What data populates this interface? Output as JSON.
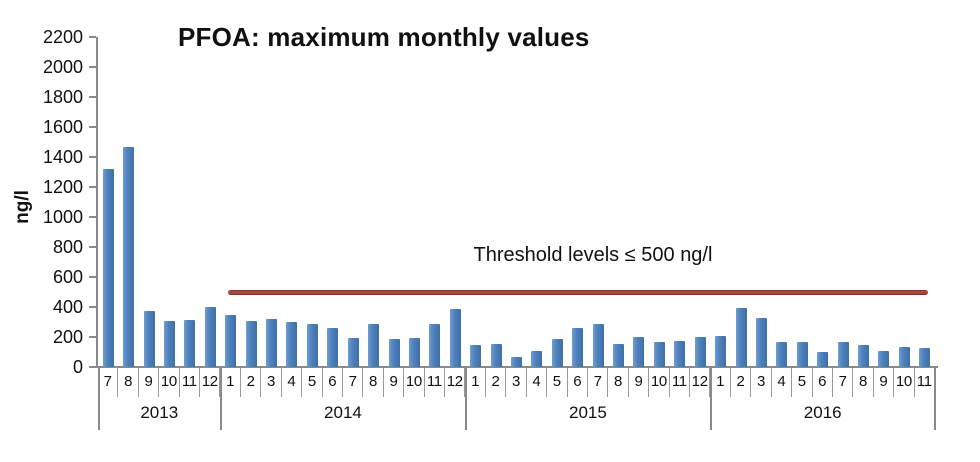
{
  "title": "PFOA: maximum monthly values",
  "colors": {
    "bar": "#4F81BD",
    "bar_highlight": "#6D9DD2",
    "bar_shadow": "#3F6FA6",
    "threshold_line": "#9E3B35",
    "axis": "#8A8A8A",
    "separator": "#9A9A9A",
    "text": "#111111",
    "background": "#FFFFFF"
  },
  "chart_data": {
    "type": "bar",
    "title": "PFOA: maximum monthly values",
    "xlabel": "",
    "ylabel": "ng/l",
    "ylim": [
      0,
      2200
    ],
    "y_tick_step": 200,
    "y_ticks": [
      "2200",
      "2000",
      "1800",
      "1600",
      "1400",
      "1200",
      "1000",
      "800",
      "600",
      "400",
      "200",
      "0"
    ],
    "grid": false,
    "legend_position": "none",
    "threshold_line": {
      "label": "Threshold levels ≤ 500 ng/l",
      "value": 500,
      "span_note": "horizontal line from late 2013 through Nov 2016"
    },
    "groups": [
      {
        "year": "2013",
        "months": [
          "7",
          "8",
          "9",
          "10",
          "11",
          "12"
        ],
        "values": [
          1320,
          1470,
          375,
          305,
          315,
          400
        ]
      },
      {
        "year": "2014",
        "months": [
          "1",
          "2",
          "3",
          "4",
          "5",
          "6",
          "7",
          "8",
          "9",
          "10",
          "11",
          "12"
        ],
        "values": [
          350,
          305,
          320,
          300,
          290,
          260,
          195,
          290,
          185,
          195,
          285,
          385
        ]
      },
      {
        "year": "2015",
        "months": [
          "1",
          "2",
          "3",
          "4",
          "5",
          "6",
          "7",
          "8",
          "9",
          "10",
          "11",
          "12"
        ],
        "values": [
          145,
          155,
          70,
          110,
          190,
          260,
          290,
          155,
          200,
          170,
          175,
          200
        ]
      },
      {
        "year": "2016",
        "months": [
          "1",
          "2",
          "3",
          "4",
          "5",
          "6",
          "7",
          "8",
          "9",
          "10",
          "11"
        ],
        "values": [
          210,
          395,
          325,
          165,
          165,
          100,
          170,
          145,
          110,
          135,
          125
        ]
      }
    ]
  }
}
